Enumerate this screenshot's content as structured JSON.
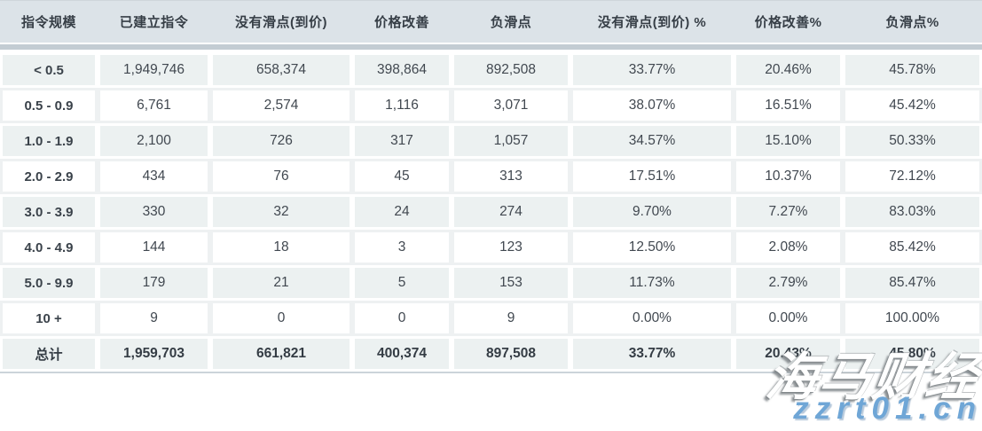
{
  "table": {
    "columns": [
      "指令规模",
      "已建立指令",
      "没有滑点(到价)",
      "价格改善",
      "负滑点",
      "没有滑点(到价) %",
      "价格改善%",
      "负滑点%"
    ],
    "rows": [
      [
        "< 0.5",
        "1,949,746",
        "658,374",
        "398,864",
        "892,508",
        "33.77%",
        "20.46%",
        "45.78%"
      ],
      [
        "0.5 - 0.9",
        "6,761",
        "2,574",
        "1,116",
        "3,071",
        "38.07%",
        "16.51%",
        "45.42%"
      ],
      [
        "1.0 - 1.9",
        "2,100",
        "726",
        "317",
        "1,057",
        "34.57%",
        "15.10%",
        "50.33%"
      ],
      [
        "2.0 - 2.9",
        "434",
        "76",
        "45",
        "313",
        "17.51%",
        "10.37%",
        "72.12%"
      ],
      [
        "3.0 - 3.9",
        "330",
        "32",
        "24",
        "274",
        "9.70%",
        "7.27%",
        "83.03%"
      ],
      [
        "4.0 - 4.9",
        "144",
        "18",
        "3",
        "123",
        "12.50%",
        "2.08%",
        "85.42%"
      ],
      [
        "5.0 - 9.9",
        "179",
        "21",
        "5",
        "153",
        "11.73%",
        "2.79%",
        "85.47%"
      ],
      [
        "10 +",
        "9",
        "0",
        "0",
        "9",
        "0.00%",
        "0.00%",
        "100.00%"
      ]
    ],
    "total": [
      "总计",
      "1,959,703",
      "661,821",
      "400,374",
      "897,508",
      "33.77%",
      "20.43%",
      "45.80%"
    ]
  },
  "watermark": {
    "brand": "海马财经",
    "site": "zzrt01.cn"
  },
  "colors": {
    "header_bg": "#dce3e8",
    "stripe_bg": "#ecf1f1",
    "divider_band": "#c3ccd3",
    "watermark_blue": "#6fa6d6"
  }
}
